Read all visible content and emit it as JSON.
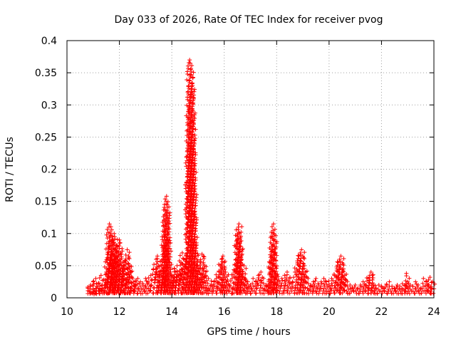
{
  "chart_data": {
    "type": "scatter",
    "title": "Day 033 of 2026, Rate Of TEC Index for receiver pvog",
    "xlabel": "GPS time / hours",
    "ylabel": "ROTI / TECUs",
    "xlim": [
      10,
      24
    ],
    "ylim": [
      0,
      0.4
    ],
    "xticks": [
      10,
      12,
      14,
      16,
      18,
      20,
      22,
      24
    ],
    "xtick_labels": [
      "10",
      "12",
      "14",
      "16",
      "18",
      "20",
      "22",
      "24"
    ],
    "yticks": [
      0,
      0.05,
      0.1,
      0.15,
      0.2,
      0.25,
      0.3,
      0.35,
      0.4
    ],
    "ytick_labels": [
      "0",
      "0.05",
      "0.1",
      "0.15",
      "0.2",
      "0.25",
      "0.3",
      "0.35",
      "0.4"
    ],
    "grid": true,
    "marker": "+",
    "color": "#ff0000",
    "series": [
      {
        "name": "ROTI",
        "points": [
          [
            10.8,
            0.015
          ],
          [
            10.85,
            0.01
          ],
          [
            10.9,
            0.02
          ],
          [
            10.95,
            0.008
          ],
          [
            11.0,
            0.025
          ],
          [
            11.05,
            0.012
          ],
          [
            11.1,
            0.03
          ],
          [
            11.15,
            0.018
          ],
          [
            11.2,
            0.022
          ],
          [
            11.25,
            0.01
          ],
          [
            11.3,
            0.035
          ],
          [
            11.35,
            0.015
          ],
          [
            11.4,
            0.028
          ],
          [
            11.45,
            0.02
          ],
          [
            11.5,
            0.04
          ],
          [
            11.55,
            0.06
          ],
          [
            11.6,
            0.11
          ],
          [
            11.62,
            0.115
          ],
          [
            11.64,
            0.1
          ],
          [
            11.66,
            0.08
          ],
          [
            11.7,
            0.05
          ],
          [
            11.72,
            0.07
          ],
          [
            11.75,
            0.09
          ],
          [
            11.78,
            0.085
          ],
          [
            11.8,
            0.1
          ],
          [
            11.82,
            0.095
          ],
          [
            11.85,
            0.075
          ],
          [
            11.88,
            0.06
          ],
          [
            11.9,
            0.065
          ],
          [
            11.92,
            0.08
          ],
          [
            11.95,
            0.04
          ],
          [
            12.0,
            0.09
          ],
          [
            12.02,
            0.085
          ],
          [
            12.05,
            0.07
          ],
          [
            12.08,
            0.05
          ],
          [
            12.1,
            0.045
          ],
          [
            12.15,
            0.03
          ],
          [
            12.2,
            0.055
          ],
          [
            12.25,
            0.06
          ],
          [
            12.3,
            0.075
          ],
          [
            12.35,
            0.065
          ],
          [
            12.4,
            0.05
          ],
          [
            12.45,
            0.04
          ],
          [
            12.5,
            0.03
          ],
          [
            12.55,
            0.025
          ],
          [
            12.6,
            0.02
          ],
          [
            12.7,
            0.03
          ],
          [
            12.8,
            0.025
          ],
          [
            12.9,
            0.02
          ],
          [
            13.0,
            0.03
          ],
          [
            13.1,
            0.025
          ],
          [
            13.2,
            0.035
          ],
          [
            13.3,
            0.045
          ],
          [
            13.4,
            0.06
          ],
          [
            13.45,
            0.065
          ],
          [
            13.5,
            0.05
          ],
          [
            13.55,
            0.04
          ],
          [
            13.6,
            0.035
          ],
          [
            13.65,
            0.045
          ],
          [
            13.7,
            0.08
          ],
          [
            13.72,
            0.095
          ],
          [
            13.74,
            0.13
          ],
          [
            13.76,
            0.135
          ],
          [
            13.78,
            0.15
          ],
          [
            13.8,
            0.158
          ],
          [
            13.82,
            0.145
          ],
          [
            13.84,
            0.12
          ],
          [
            13.86,
            0.09
          ],
          [
            13.9,
            0.06
          ],
          [
            13.95,
            0.04
          ],
          [
            14.0,
            0.035
          ],
          [
            14.05,
            0.03
          ],
          [
            14.1,
            0.045
          ],
          [
            14.15,
            0.04
          ],
          [
            14.2,
            0.05
          ],
          [
            14.25,
            0.035
          ],
          [
            14.3,
            0.04
          ],
          [
            14.35,
            0.055
          ],
          [
            14.4,
            0.07
          ],
          [
            14.45,
            0.06
          ],
          [
            14.5,
            0.05
          ],
          [
            14.55,
            0.065
          ],
          [
            14.6,
            0.07
          ],
          [
            14.62,
            0.18
          ],
          [
            14.64,
            0.236
          ],
          [
            14.66,
            0.292
          ],
          [
            14.68,
            0.37
          ],
          [
            14.7,
            0.365
          ],
          [
            14.72,
            0.355
          ],
          [
            14.74,
            0.347
          ],
          [
            14.76,
            0.333
          ],
          [
            14.78,
            0.318
          ],
          [
            14.8,
            0.275
          ],
          [
            14.82,
            0.23
          ],
          [
            14.84,
            0.178
          ],
          [
            14.86,
            0.133
          ],
          [
            14.88,
            0.09
          ],
          [
            14.9,
            0.07
          ],
          [
            14.95,
            0.05
          ],
          [
            15.0,
            0.04
          ],
          [
            15.05,
            0.045
          ],
          [
            15.1,
            0.055
          ],
          [
            15.15,
            0.068
          ],
          [
            15.2,
            0.065
          ],
          [
            15.25,
            0.05
          ],
          [
            15.3,
            0.035
          ],
          [
            15.4,
            0.03
          ],
          [
            15.5,
            0.02
          ],
          [
            15.6,
            0.025
          ],
          [
            15.7,
            0.03
          ],
          [
            15.8,
            0.04
          ],
          [
            15.85,
            0.05
          ],
          [
            15.9,
            0.06
          ],
          [
            15.95,
            0.065
          ],
          [
            16.0,
            0.055
          ],
          [
            16.05,
            0.04
          ],
          [
            16.1,
            0.025
          ],
          [
            16.2,
            0.02
          ],
          [
            16.3,
            0.03
          ],
          [
            16.4,
            0.04
          ],
          [
            16.45,
            0.06
          ],
          [
            16.5,
            0.09
          ],
          [
            16.52,
            0.1
          ],
          [
            16.54,
            0.11
          ],
          [
            16.56,
            0.115
          ],
          [
            16.58,
            0.1
          ],
          [
            16.6,
            0.085
          ],
          [
            16.65,
            0.06
          ],
          [
            16.7,
            0.04
          ],
          [
            16.75,
            0.05
          ],
          [
            16.8,
            0.03
          ],
          [
            16.9,
            0.025
          ],
          [
            17.0,
            0.02
          ],
          [
            17.1,
            0.03
          ],
          [
            17.2,
            0.025
          ],
          [
            17.3,
            0.035
          ],
          [
            17.4,
            0.04
          ],
          [
            17.5,
            0.03
          ],
          [
            17.6,
            0.02
          ],
          [
            17.7,
            0.025
          ],
          [
            17.75,
            0.04
          ],
          [
            17.8,
            0.06
          ],
          [
            17.82,
            0.08
          ],
          [
            17.84,
            0.095
          ],
          [
            17.86,
            0.105
          ],
          [
            17.88,
            0.115
          ],
          [
            17.9,
            0.1
          ],
          [
            17.92,
            0.07
          ],
          [
            17.95,
            0.05
          ],
          [
            18.0,
            0.035
          ],
          [
            18.1,
            0.025
          ],
          [
            18.2,
            0.03
          ],
          [
            18.3,
            0.035
          ],
          [
            18.4,
            0.04
          ],
          [
            18.5,
            0.03
          ],
          [
            18.6,
            0.025
          ],
          [
            18.7,
            0.04
          ],
          [
            18.8,
            0.055
          ],
          [
            18.85,
            0.065
          ],
          [
            18.9,
            0.07
          ],
          [
            18.95,
            0.075
          ],
          [
            19.0,
            0.065
          ],
          [
            19.05,
            0.05
          ],
          [
            19.1,
            0.04
          ],
          [
            19.2,
            0.03
          ],
          [
            19.3,
            0.02
          ],
          [
            19.4,
            0.025
          ],
          [
            19.5,
            0.03
          ],
          [
            19.6,
            0.02
          ],
          [
            19.7,
            0.025
          ],
          [
            19.8,
            0.03
          ],
          [
            19.9,
            0.025
          ],
          [
            20.0,
            0.02
          ],
          [
            20.1,
            0.03
          ],
          [
            20.2,
            0.035
          ],
          [
            20.3,
            0.045
          ],
          [
            20.35,
            0.055
          ],
          [
            20.4,
            0.06
          ],
          [
            20.45,
            0.065
          ],
          [
            20.5,
            0.055
          ],
          [
            20.55,
            0.045
          ],
          [
            20.6,
            0.035
          ],
          [
            20.7,
            0.025
          ],
          [
            20.8,
            0.02
          ],
          [
            20.9,
            0.015
          ],
          [
            21.0,
            0.02
          ],
          [
            21.1,
            0.015
          ],
          [
            21.2,
            0.02
          ],
          [
            21.3,
            0.025
          ],
          [
            21.4,
            0.02
          ],
          [
            21.5,
            0.03
          ],
          [
            21.55,
            0.035
          ],
          [
            21.6,
            0.04
          ],
          [
            21.65,
            0.035
          ],
          [
            21.7,
            0.02
          ],
          [
            21.8,
            0.015
          ],
          [
            21.9,
            0.02
          ],
          [
            22.0,
            0.018
          ],
          [
            22.1,
            0.015
          ],
          [
            22.2,
            0.02
          ],
          [
            22.3,
            0.025
          ],
          [
            22.4,
            0.018
          ],
          [
            22.5,
            0.015
          ],
          [
            22.6,
            0.02
          ],
          [
            22.7,
            0.018
          ],
          [
            22.8,
            0.022
          ],
          [
            22.9,
            0.02
          ],
          [
            22.95,
            0.038
          ],
          [
            23.0,
            0.025
          ],
          [
            23.1,
            0.02
          ],
          [
            23.2,
            0.018
          ],
          [
            23.3,
            0.025
          ],
          [
            23.4,
            0.02
          ],
          [
            23.5,
            0.015
          ],
          [
            23.6,
            0.03
          ],
          [
            23.7,
            0.025
          ],
          [
            23.8,
            0.02
          ],
          [
            23.85,
            0.032
          ],
          [
            23.9,
            0.015
          ],
          [
            23.95,
            0.025
          ]
        ]
      }
    ]
  }
}
